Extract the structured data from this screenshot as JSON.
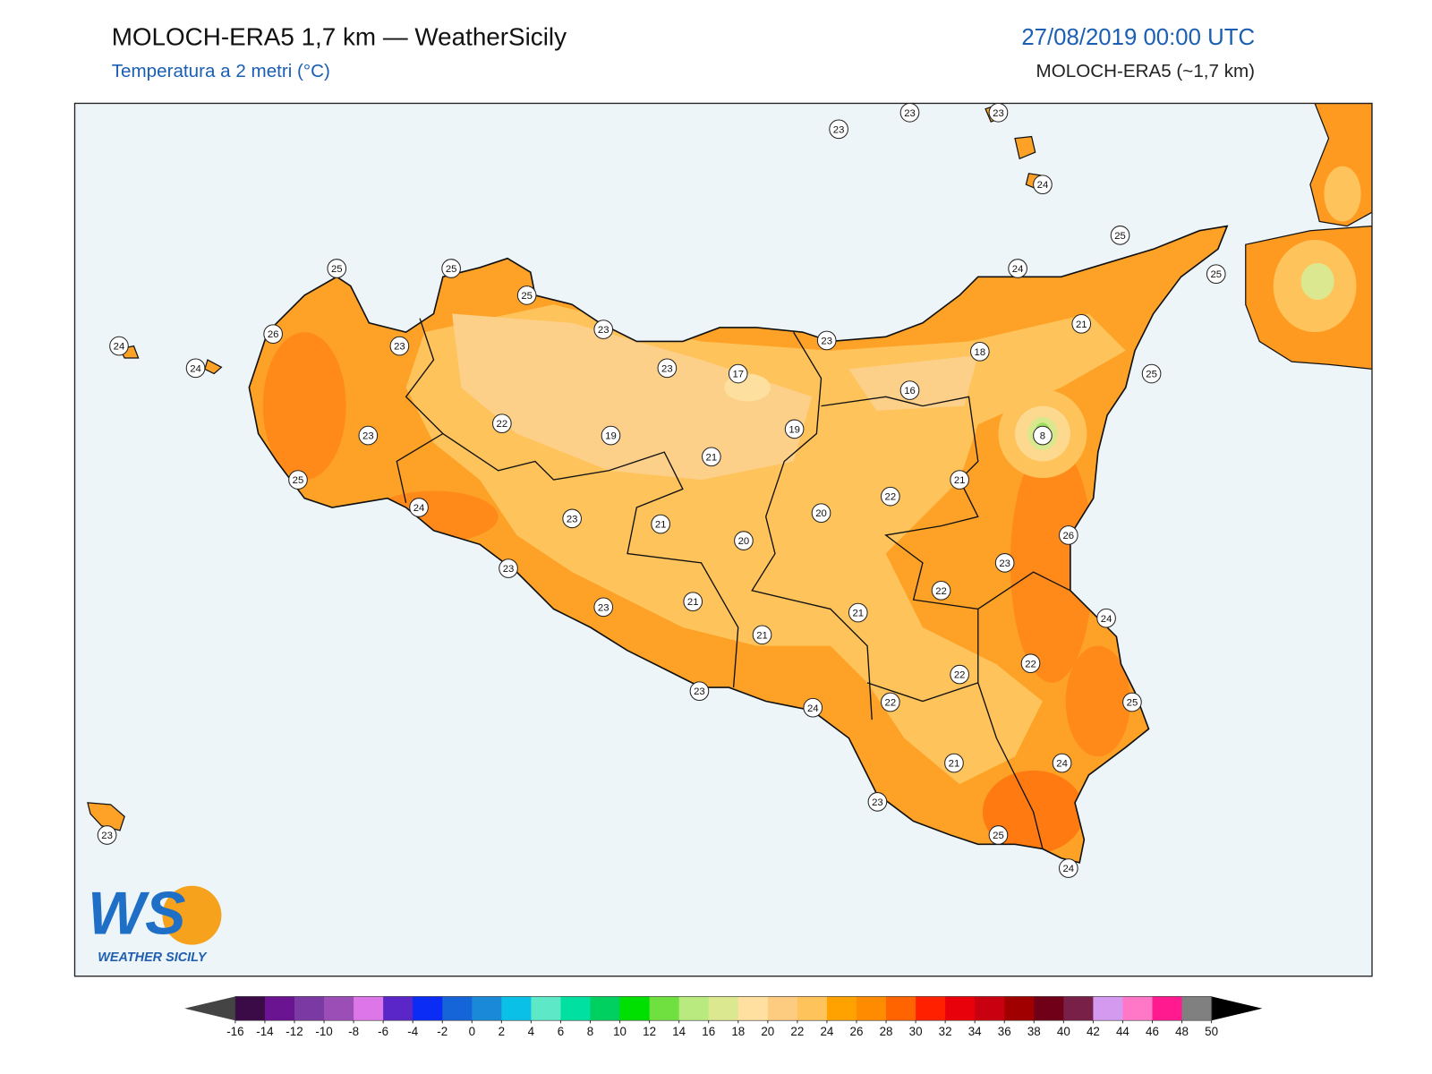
{
  "header": {
    "title": "MOLOCH-ERA5 1,7 km — WeatherSicily",
    "subtitle": "Temperatura a 2 metri (°C)",
    "date": "27/08/2019 00:00 UTC",
    "model": "MOLOCH-ERA5 (~1,7 km)"
  },
  "stations": [
    23,
    23,
    23,
    24,
    25,
    24,
    25,
    25,
    25,
    25,
    23,
    26,
    23,
    24,
    24,
    23,
    18,
    21,
    23,
    17,
    16,
    25,
    22,
    19,
    19,
    8,
    23,
    21,
    25,
    21,
    24,
    22,
    20,
    23,
    21,
    20,
    26,
    23,
    23,
    22,
    23,
    21,
    21,
    24,
    21,
    22,
    22,
    23,
    24,
    22,
    25,
    21,
    24,
    23,
    25,
    24,
    23
  ],
  "logo": {
    "letters": "WS",
    "text": "WEATHER SICILY"
  },
  "colorbar": {
    "ticks": [
      -16,
      -14,
      -12,
      -10,
      -8,
      -6,
      -4,
      -2,
      0,
      2,
      4,
      6,
      8,
      10,
      12,
      14,
      16,
      18,
      20,
      22,
      24,
      26,
      28,
      30,
      32,
      34,
      36,
      38,
      40,
      42,
      44,
      46,
      48,
      50
    ],
    "colors": [
      "#3b0b47",
      "#6a1491",
      "#7b3aa3",
      "#9b4fb6",
      "#dd76e8",
      "#5a26c7",
      "#0b2cf5",
      "#1565d8",
      "#1a8ad8",
      "#0bc0e6",
      "#5de8c8",
      "#00e0a0",
      "#00d060",
      "#00e000",
      "#70e040",
      "#b8ea80",
      "#dce890",
      "#ffe0a0",
      "#fdcc80",
      "#fec35a",
      "#ffa200",
      "#ff8c00",
      "#ff6400",
      "#ff2000",
      "#e8000a",
      "#c80010",
      "#a00000",
      "#700018",
      "#782048",
      "#d49af0",
      "#ff78c8",
      "#ff1a90",
      "#808080",
      "#383838"
    ],
    "under_color": "#444444",
    "over_color": "#000000"
  }
}
